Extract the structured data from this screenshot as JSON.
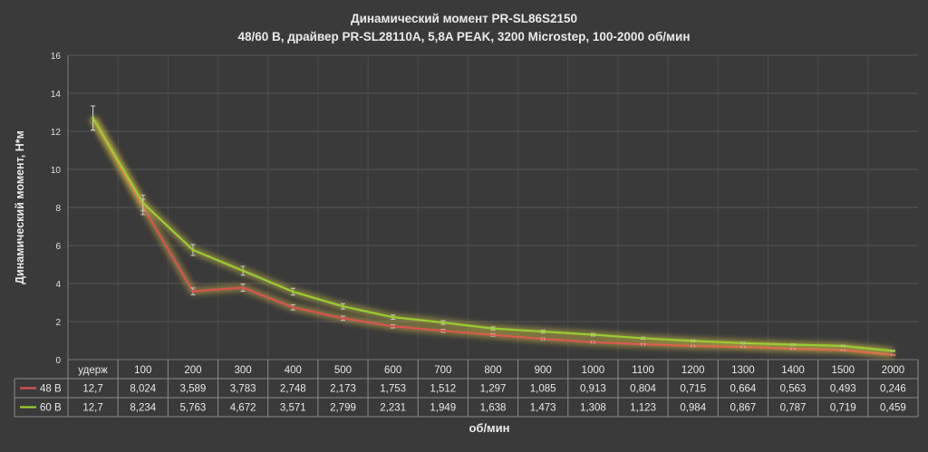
{
  "chart_data": {
    "type": "line",
    "title": "Динамический момент PR-SL86S2150",
    "subtitle": "48/60 В, драйвер PR-SL28110A, 5,8A PEAK, 3200 Microstep, 100-2000 об/мин",
    "xlabel": "об/мин",
    "ylabel": "Динамический момент, Н*м",
    "ylim": [
      0,
      16
    ],
    "yticks": [
      "0",
      "2",
      "4",
      "6",
      "8",
      "10",
      "12",
      "14",
      "16"
    ],
    "categories": [
      "удерж",
      "100",
      "200",
      "300",
      "400",
      "500",
      "600",
      "700",
      "800",
      "900",
      "1000",
      "1100",
      "1200",
      "1300",
      "1400",
      "1500",
      "2000"
    ],
    "grid": true,
    "data_table": true,
    "error_bars": true,
    "series": [
      {
        "name": "48 В",
        "color": "#d9534f",
        "glow": "#e8c64a",
        "values": [
          12.7,
          8.024,
          3.589,
          3.783,
          2.748,
          2.173,
          1.753,
          1.512,
          1.297,
          1.085,
          0.913,
          0.804,
          0.715,
          0.664,
          0.563,
          0.493,
          0.246
        ],
        "labels": [
          "12,7",
          "8,024",
          "3,589",
          "3,783",
          "2,748",
          "2,173",
          "1,753",
          "1,512",
          "1,297",
          "1,085",
          "0,913",
          "0,804",
          "0,715",
          "0,664",
          "0,563",
          "0,493",
          "0,246"
        ]
      },
      {
        "name": "60 В",
        "color": "#9acd32",
        "glow": "#e8d84a",
        "values": [
          12.7,
          8.234,
          5.763,
          4.672,
          3.571,
          2.799,
          2.231,
          1.949,
          1.638,
          1.473,
          1.308,
          1.123,
          0.984,
          0.867,
          0.787,
          0.719,
          0.459
        ],
        "labels": [
          "12,7",
          "8,234",
          "5,763",
          "4,672",
          "3,571",
          "2,799",
          "2,231",
          "1,949",
          "1,638",
          "1,473",
          "1,308",
          "1,123",
          "0,984",
          "0,867",
          "0,787",
          "0,719",
          "0,459"
        ]
      }
    ]
  }
}
